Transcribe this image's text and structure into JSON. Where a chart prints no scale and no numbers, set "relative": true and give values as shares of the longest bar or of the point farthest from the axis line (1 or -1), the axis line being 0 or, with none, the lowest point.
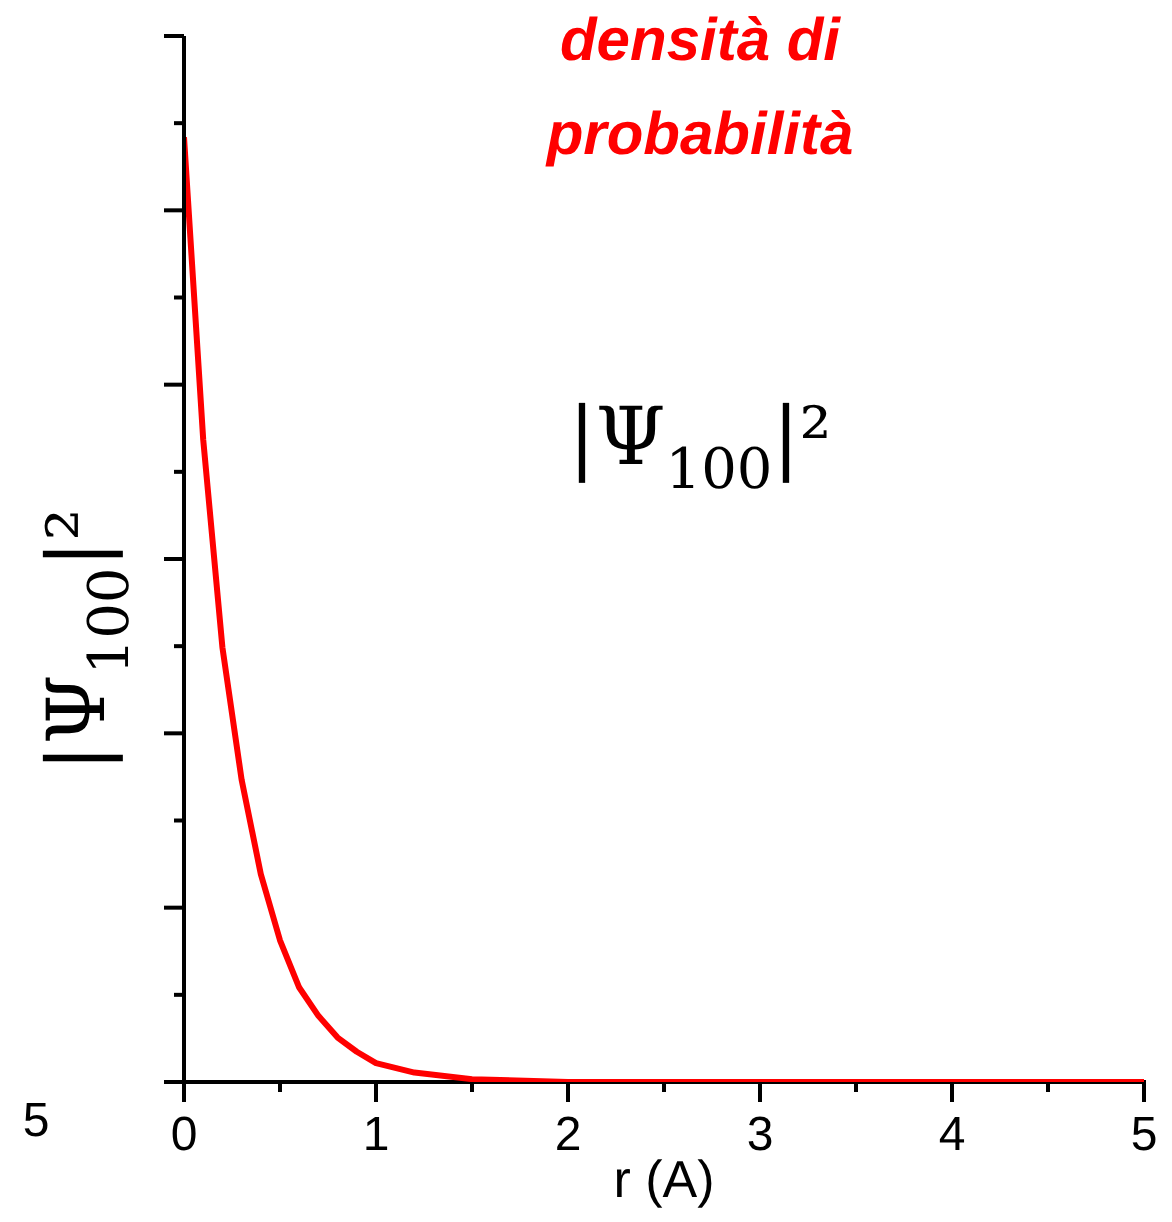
{
  "chart_data": {
    "type": "line",
    "title": "densità di probabilità",
    "xlabel": "r (A)",
    "ylabel": "|Ψ$_{100}$|²",
    "annotations": [
      "|Ψ$_{100}$|²",
      "5"
    ],
    "x": [
      0,
      0.1,
      0.2,
      0.3,
      0.4,
      0.5,
      0.6,
      0.7,
      0.8,
      0.9,
      1.0,
      1.2,
      1.5,
      2,
      3,
      4,
      5
    ],
    "series": [
      {
        "color": "#ff0000",
        "values": [
          1,
          0.68,
          0.46,
          0.32,
          0.22,
          0.15,
          0.1,
          0.07,
          0.047,
          0.032,
          0.02,
          0.01,
          0.003,
          0,
          0,
          0,
          0
        ]
      }
    ],
    "relative": true,
    "xlim": [
      0,
      5
    ],
    "xticks": [
      0,
      1,
      2,
      3,
      4,
      5
    ],
    "grid": false,
    "legend": false,
    "marker": "none",
    "line_style": "solid"
  }
}
